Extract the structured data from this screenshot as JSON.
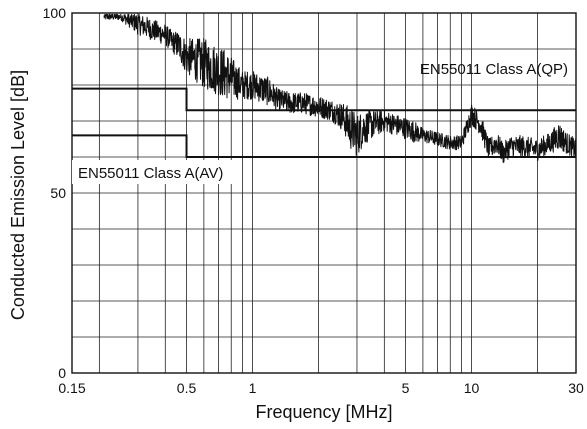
{
  "chart_data": {
    "type": "line",
    "title": "",
    "xlabel": "Frequency [MHz]",
    "ylabel": "Conducted Emission Level [dB]",
    "x_scale": "log",
    "xlim": [
      0.15,
      30
    ],
    "ylim": [
      0,
      100
    ],
    "x_tick_labels": [
      {
        "value": 0.15,
        "label": "0.15"
      },
      {
        "value": 0.5,
        "label": "0.5"
      },
      {
        "value": 1,
        "label": "1"
      },
      {
        "value": 5,
        "label": "5"
      },
      {
        "value": 10,
        "label": "10"
      },
      {
        "value": 30,
        "label": "30"
      }
    ],
    "y_tick_labels": [
      {
        "value": 0,
        "label": "0"
      },
      {
        "value": 50,
        "label": "50"
      },
      {
        "value": 100,
        "label": "100"
      }
    ],
    "x_gridlines": [
      0.15,
      0.2,
      0.3,
      0.4,
      0.5,
      0.6,
      0.7,
      0.8,
      0.9,
      1,
      2,
      3,
      4,
      5,
      6,
      7,
      8,
      9,
      10,
      20,
      30
    ],
    "y_gridlines": [
      0,
      10,
      20,
      30,
      40,
      50,
      60,
      70,
      80,
      90,
      100
    ],
    "grid": true,
    "limit_lines": [
      {
        "label": "EN55011 Class A(QP)",
        "segments": [
          {
            "x": [
              0.15,
              0.5
            ],
            "y": 79
          },
          {
            "x": [
              0.5,
              30
            ],
            "y": 73
          }
        ]
      },
      {
        "label": "EN55011 Class A(AV)",
        "segments": [
          {
            "x": [
              0.15,
              0.5
            ],
            "y": 66
          },
          {
            "x": [
              0.5,
              30
            ],
            "y": 60
          }
        ]
      }
    ],
    "series": [
      {
        "x": [
          0.21,
          0.25,
          0.3,
          0.33,
          0.36,
          0.4,
          0.43,
          0.46,
          0.5,
          0.55,
          0.6,
          0.65,
          0.7,
          0.75,
          0.8,
          0.85,
          0.9,
          1.0,
          1.1,
          1.2,
          1.3,
          1.5,
          1.7,
          2.0,
          2.3,
          2.6,
          2.8,
          3.0,
          3.2,
          3.5,
          4.0,
          4.5,
          5.0,
          5.5,
          6.0,
          7.0,
          8.0,
          9.0,
          10.0,
          11.0,
          12.0,
          13.0,
          14.0,
          15.0,
          17.0,
          20.0,
          23.0,
          25.0,
          27.0,
          30.0
        ],
        "center": [
          99,
          99,
          97,
          96,
          95,
          94,
          92,
          91,
          88,
          87,
          86,
          85,
          84,
          83,
          82,
          81,
          80,
          80,
          79,
          78,
          76,
          75,
          75,
          74,
          73,
          71,
          68,
          66,
          68,
          69,
          70,
          69,
          68,
          67,
          66,
          65,
          64,
          64,
          72,
          69,
          62,
          64,
          61,
          63,
          63,
          62,
          64,
          66,
          64,
          62
        ],
        "amplitude": [
          1,
          1,
          3,
          3,
          3,
          3,
          3,
          4,
          5,
          6,
          7,
          7,
          7,
          7,
          6,
          5,
          4,
          4,
          4,
          4,
          3,
          3,
          3,
          3,
          3,
          4,
          6,
          6,
          5,
          4,
          3,
          3,
          3,
          3,
          2,
          2,
          2,
          2,
          3,
          3,
          3,
          3,
          3,
          3,
          3,
          3,
          3,
          4,
          3,
          3
        ]
      }
    ]
  }
}
